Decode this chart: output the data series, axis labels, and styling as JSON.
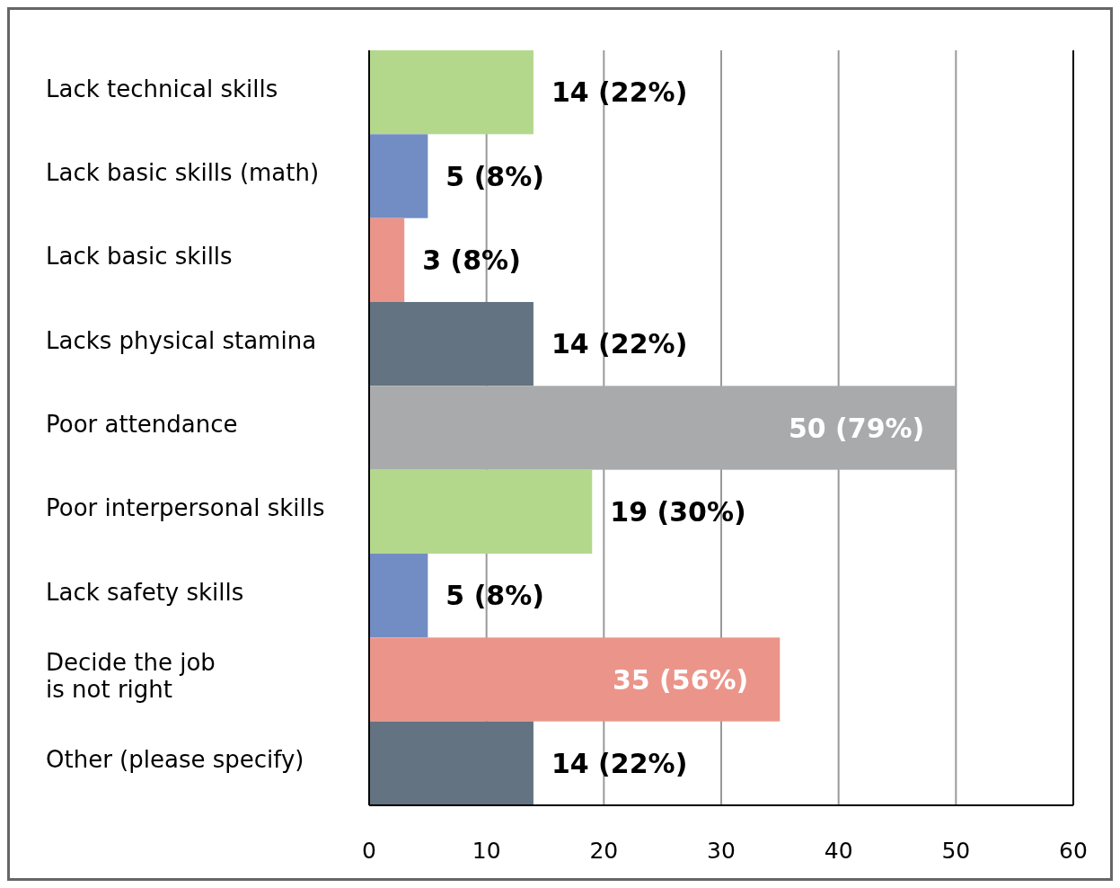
{
  "chart_data": {
    "type": "bar",
    "orientation": "horizontal",
    "categories": [
      "Lack technical skills",
      "Lack basic skills (math)",
      "Lack basic skills",
      "Lacks physical stamina",
      "Poor attendance",
      "Poor interpersonal skills",
      "Lack safety skills",
      "Decide the job\nis not right",
      "Other (please specify)"
    ],
    "values": [
      14,
      5,
      3,
      14,
      50,
      19,
      5,
      35,
      14
    ],
    "colors": [
      "#b3d88c",
      "#728dc4",
      "#eb958a",
      "#637381",
      "#a9aaab",
      "#b3d88c",
      "#728dc4",
      "#eb958a",
      "#637381"
    ],
    "value_labels": [
      "14 (22%)",
      "5 (8%)",
      "3 (8%)",
      "14 (22%)",
      "50 (79%)",
      "19 (30%)",
      "5 (8%)",
      "35 (56%)",
      "14 (22%)"
    ],
    "xlim": [
      0,
      60
    ],
    "xticks": [
      0,
      10,
      20,
      30,
      40,
      50,
      60
    ],
    "grid": "x"
  }
}
